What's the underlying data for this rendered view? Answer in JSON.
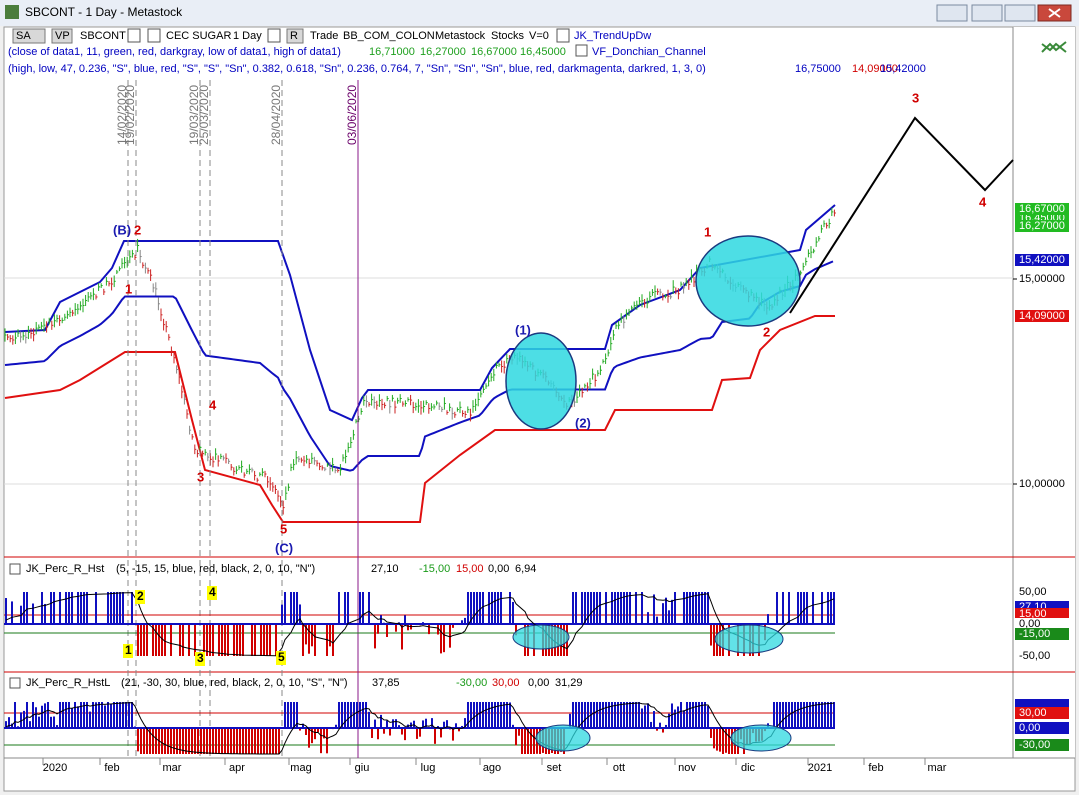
{
  "window": {
    "title": "SBCONT - 1 Day - Metastock"
  },
  "toolbar": {
    "items": [
      "SA",
      "VP",
      "SBCONT",
      "CEC SUGAR",
      "1 Day",
      "R",
      "Trade",
      "BB_COM_COLON",
      "Metastock",
      "Stocks",
      "V=0",
      "JK_TrendUpDw"
    ]
  },
  "indicators": [
    {
      "params": "(close of data1,  11,  green,  red,  darkgray,  low of data1,  high of data1)",
      "values": [
        "16,71000",
        "16,27000",
        "16,67000",
        "16,45000"
      ],
      "name": "VF_Donchian_Channel"
    },
    {
      "params": "(high,  low,  47,  0.236,  \"S\",  blue,  red,  \"S\",  \"S\",  \"Sn\",  0.382,  0.618,  \"Sn\",  0.236,  0.764,  7,  \"Sn\",  \"Sn\",  \"Sn\",  blue,  red,  darkmagenta,  darkred,  1,  3,  0)",
      "values": [
        "16,75000",
        "14,09000",
        "15,42000"
      ]
    }
  ],
  "price_panel": {
    "axis_labels": [
      "15,00000",
      "10,00000"
    ],
    "last_values": [
      "16,67000",
      "16,45000",
      "16,27000",
      "15,42000",
      "14,09000"
    ],
    "vertical_lines": [
      "14/02/2020",
      "19/02/2020",
      "19/03/2020",
      "25/03/2020",
      "28/04/2020",
      "03/06/2020"
    ],
    "annotations": [
      "(B)",
      "2",
      "1",
      "4",
      "3",
      "5",
      "(C)",
      "(1)",
      "(2)",
      "1",
      "2",
      "3",
      "4"
    ]
  },
  "panel2": {
    "name": "JK_Perc_R_Hst",
    "params": "(5,  -15,  15,  blue,  red,  black,  2,  0,  10,  \"N\")",
    "header_values": [
      "27,10",
      "-15,00",
      "15,00",
      "0,00",
      "6,94"
    ],
    "axis_labels": [
      "50,00",
      "-50,00"
    ],
    "last_values": [
      "27,10",
      "15,00",
      "0,00",
      "-15,00"
    ],
    "markers": [
      "2",
      "4",
      "1",
      "3",
      "5"
    ]
  },
  "panel3": {
    "name": "JK_Perc_R_HstL",
    "params": "(21,  -30,  30,  blue,  red,  black,  2,  0,  10,  \"S\",  \"N\")",
    "header_values": [
      "37,85",
      "-30,00",
      "30,00",
      "0,00",
      "31,29"
    ],
    "last_values": [
      "30,00",
      "0,00",
      "-30,00"
    ]
  },
  "x_axis": {
    "labels": [
      "2020",
      "feb",
      "mar",
      "apr",
      "mag",
      "giu",
      "lug",
      "ago",
      "set",
      "ott",
      "nov",
      "dic",
      "2021",
      "feb",
      "mar"
    ]
  }
}
